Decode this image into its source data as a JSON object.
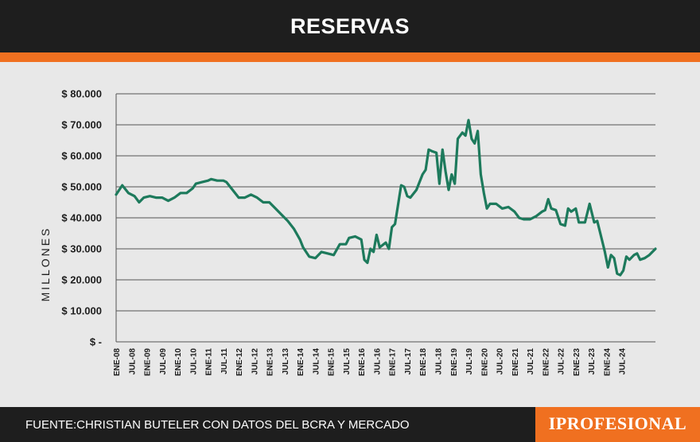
{
  "header": {
    "title": "RESERVAS"
  },
  "footer": {
    "source": "FUENTE:CHRISTIAN BUTELER CON DATOS DEL BCRA Y MERCADO",
    "brand": "IPROFESIONAL"
  },
  "colors": {
    "header_bg": "#1e1e1e",
    "accent": "#f07020",
    "line": "#1d7a5c",
    "grid": "#555555",
    "panel": "#e8e8e8"
  },
  "chart_data": {
    "type": "line",
    "title": "RESERVAS",
    "ylabel": "MILLONES",
    "xlabel": "",
    "ylim": [
      0,
      80000
    ],
    "grid": true,
    "y_ticks": [
      0,
      10000,
      20000,
      30000,
      40000,
      50000,
      60000,
      70000,
      80000
    ],
    "y_tick_labels": [
      "$ -",
      "$ 10.000",
      "$ 20.000",
      "$ 30.000",
      "$ 40.000",
      "$ 50.000",
      "$ 60.000",
      "$ 70.000",
      "$ 80.000"
    ],
    "x_tick_labels": [
      "ENE-08",
      "JUL-08",
      "ENE-09",
      "JUL-09",
      "ENE-10",
      "JUL-10",
      "ENE-11",
      "JUL-11",
      "ENE-12",
      "JUL-12",
      "ENE-13",
      "JUL-13",
      "ENE-14",
      "JUL-14",
      "ENE-15",
      "JUL-15",
      "ENE-16",
      "JUL-16",
      "ENE-17",
      "JUL-17",
      "ENE-18",
      "JUL-18",
      "ENE-19",
      "JUL-19",
      "ENE-20",
      "JUL-20",
      "ENE-21",
      "JUL-21",
      "ENE-22",
      "JUL-22",
      "ENE-23",
      "JUL-23",
      "ENE-24",
      "JUL-24"
    ],
    "series": [
      {
        "values": [
          [
            2008.0,
            47500
          ],
          [
            2008.2,
            50500
          ],
          [
            2008.4,
            48000
          ],
          [
            2008.6,
            47000
          ],
          [
            2008.75,
            45000
          ],
          [
            2008.9,
            46500
          ],
          [
            2009.1,
            47000
          ],
          [
            2009.3,
            46500
          ],
          [
            2009.5,
            46500
          ],
          [
            2009.7,
            45500
          ],
          [
            2009.9,
            46500
          ],
          [
            2010.1,
            48000
          ],
          [
            2010.3,
            48000
          ],
          [
            2010.5,
            49500
          ],
          [
            2010.6,
            51000
          ],
          [
            2010.8,
            51500
          ],
          [
            2011.0,
            52000
          ],
          [
            2011.1,
            52500
          ],
          [
            2011.3,
            52000
          ],
          [
            2011.5,
            52000
          ],
          [
            2011.6,
            51500
          ],
          [
            2011.8,
            49000
          ],
          [
            2012.0,
            46500
          ],
          [
            2012.2,
            46500
          ],
          [
            2012.4,
            47500
          ],
          [
            2012.6,
            46500
          ],
          [
            2012.8,
            45000
          ],
          [
            2013.0,
            45000
          ],
          [
            2013.2,
            43000
          ],
          [
            2013.4,
            41000
          ],
          [
            2013.6,
            39000
          ],
          [
            2013.8,
            36500
          ],
          [
            2014.0,
            33000
          ],
          [
            2014.1,
            30500
          ],
          [
            2014.3,
            27500
          ],
          [
            2014.5,
            27000
          ],
          [
            2014.7,
            29000
          ],
          [
            2014.9,
            28500
          ],
          [
            2015.1,
            28000
          ],
          [
            2015.3,
            31500
          ],
          [
            2015.5,
            31500
          ],
          [
            2015.6,
            33500
          ],
          [
            2015.8,
            34000
          ],
          [
            2016.0,
            33000
          ],
          [
            2016.1,
            26500
          ],
          [
            2016.2,
            25500
          ],
          [
            2016.3,
            30000
          ],
          [
            2016.4,
            29000
          ],
          [
            2016.5,
            34500
          ],
          [
            2016.6,
            30500
          ],
          [
            2016.8,
            32000
          ],
          [
            2016.9,
            30000
          ],
          [
            2017.0,
            37000
          ],
          [
            2017.1,
            38000
          ],
          [
            2017.3,
            50500
          ],
          [
            2017.4,
            50000
          ],
          [
            2017.5,
            47000
          ],
          [
            2017.6,
            46500
          ],
          [
            2017.8,
            49000
          ],
          [
            2018.0,
            54000
          ],
          [
            2018.1,
            55500
          ],
          [
            2018.2,
            62000
          ],
          [
            2018.3,
            61500
          ],
          [
            2018.45,
            61000
          ],
          [
            2018.55,
            51000
          ],
          [
            2018.65,
            62000
          ],
          [
            2018.75,
            55000
          ],
          [
            2018.85,
            49000
          ],
          [
            2018.95,
            54000
          ],
          [
            2019.05,
            51000
          ],
          [
            2019.15,
            65500
          ],
          [
            2019.3,
            67500
          ],
          [
            2019.4,
            66500
          ],
          [
            2019.5,
            71500
          ],
          [
            2019.6,
            65500
          ],
          [
            2019.7,
            64000
          ],
          [
            2019.8,
            68000
          ],
          [
            2019.9,
            54000
          ],
          [
            2020.0,
            48000
          ],
          [
            2020.1,
            43000
          ],
          [
            2020.2,
            44500
          ],
          [
            2020.4,
            44500
          ],
          [
            2020.6,
            43000
          ],
          [
            2020.8,
            43500
          ],
          [
            2021.0,
            42000
          ],
          [
            2021.15,
            40000
          ],
          [
            2021.3,
            39500
          ],
          [
            2021.5,
            39500
          ],
          [
            2021.7,
            40500
          ],
          [
            2021.9,
            42000
          ],
          [
            2022.0,
            42500
          ],
          [
            2022.1,
            46000
          ],
          [
            2022.2,
            43000
          ],
          [
            2022.35,
            42500
          ],
          [
            2022.5,
            38000
          ],
          [
            2022.65,
            37500
          ],
          [
            2022.75,
            43000
          ],
          [
            2022.85,
            42000
          ],
          [
            2023.0,
            43000
          ],
          [
            2023.1,
            38500
          ],
          [
            2023.3,
            38500
          ],
          [
            2023.45,
            44500
          ],
          [
            2023.6,
            38500
          ],
          [
            2023.7,
            39000
          ],
          [
            2023.85,
            33000
          ],
          [
            2023.95,
            29000
          ],
          [
            2024.05,
            24000
          ],
          [
            2024.15,
            28000
          ],
          [
            2024.25,
            27000
          ],
          [
            2024.35,
            22000
          ],
          [
            2024.45,
            21500
          ],
          [
            2024.55,
            23000
          ],
          [
            2024.65,
            27500
          ],
          [
            2024.75,
            26500
          ],
          [
            2024.9,
            28000
          ],
          [
            2025.0,
            28500
          ],
          [
            2025.1,
            26500
          ],
          [
            2025.25,
            27000
          ],
          [
            2025.4,
            28000
          ],
          [
            2025.6,
            30000
          ]
        ]
      }
    ]
  }
}
